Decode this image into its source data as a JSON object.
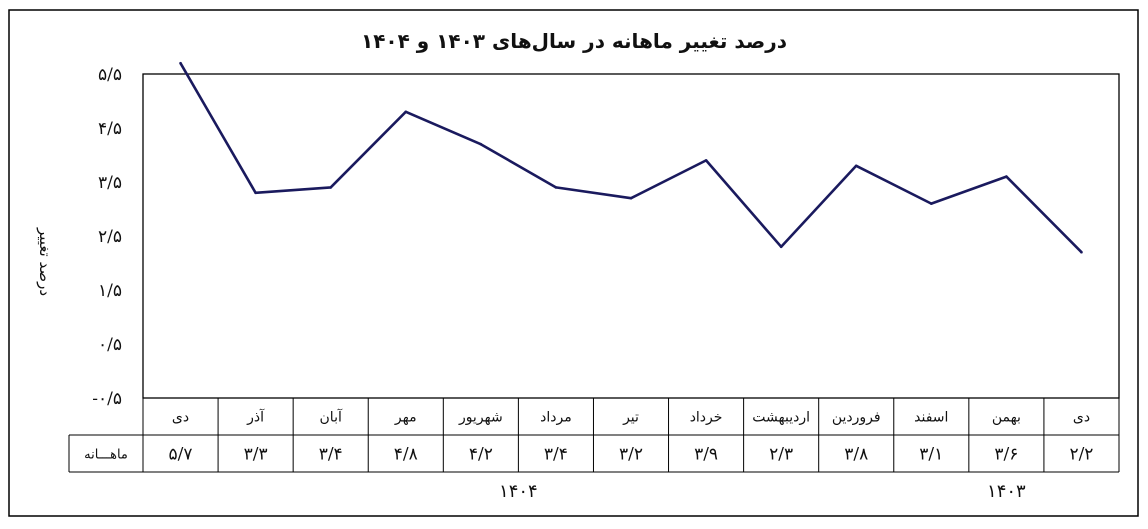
{
  "chart_data": {
    "type": "line",
    "title": "درصد تغییر ماهانه در سال‌های ۱۴۰۳ و ۱۴۰۴",
    "ylabel": "درصد تغییر",
    "xlabel": "",
    "ylim": [
      -0.5,
      5.5
    ],
    "yticks": [
      "۵/۵",
      "۴/۵",
      "۳/۵",
      "۲/۵",
      "۱/۵",
      "۰/۵",
      "-۰/۵"
    ],
    "ytick_values": [
      5.5,
      4.5,
      3.5,
      2.5,
      1.5,
      0.5,
      -0.5
    ],
    "categories": [
      "دی",
      "بهمن",
      "اسفند",
      "فروردین",
      "اردیبهشت",
      "خرداد",
      "تیر",
      "مرداد",
      "شهریور",
      "مهر",
      "آبان",
      "آذر",
      "دی"
    ],
    "values": [
      2.2,
      3.6,
      3.1,
      3.8,
      2.3,
      3.9,
      3.2,
      3.4,
      4.2,
      4.8,
      3.4,
      3.3,
      5.7
    ],
    "value_labels": [
      "۲/۲",
      "۳/۶",
      "۳/۱",
      "۳/۸",
      "۲/۳",
      "۳/۹",
      "۳/۲",
      "۳/۴",
      "۴/۲",
      "۴/۸",
      "۳/۴",
      "۳/۳",
      "۵/۷"
    ],
    "row_label": "ماهـــانه",
    "years": [
      {
        "label": "۱۴۰۳",
        "from": 0,
        "to": 2
      },
      {
        "label": "۱۴۰۴",
        "from": 3,
        "to": 12
      }
    ],
    "line_color": "#1a1a5e",
    "grid": false,
    "legend": "none"
  }
}
